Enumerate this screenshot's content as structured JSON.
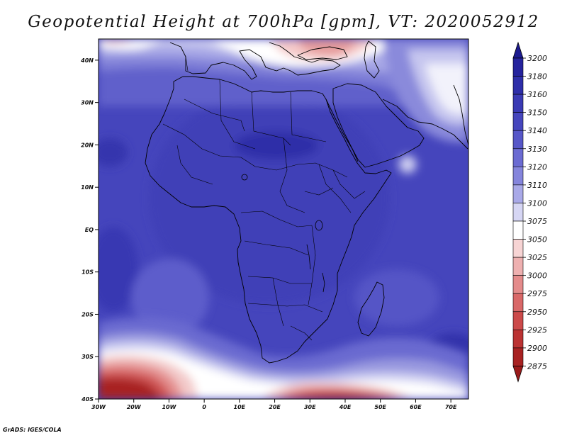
{
  "title": "Geopotential Height at 700hPa [gpm], VT: 2020052912",
  "credit": "GrADS: IGES/COLA",
  "map": {
    "lat_ticks": [
      "40N",
      "30N",
      "20N",
      "10N",
      "EQ",
      "10S",
      "20S",
      "30S",
      "40S"
    ],
    "lon_ticks": [
      "30W",
      "20W",
      "10W",
      "0",
      "10E",
      "20E",
      "30E",
      "40E",
      "50E",
      "60E",
      "70E"
    ],
    "lat_range": [
      -40,
      45
    ],
    "lon_range": [
      -30,
      75
    ]
  },
  "colorbar": {
    "levels": [
      "3200",
      "3180",
      "3160",
      "3150",
      "3140",
      "3130",
      "3120",
      "3110",
      "3100",
      "3075",
      "3050",
      "3025",
      "3000",
      "2975",
      "2950",
      "2925",
      "2900",
      "2875"
    ],
    "colors": [
      "#1c1a8f",
      "#25239d",
      "#2e2ea9",
      "#3a3ab4",
      "#4646bd",
      "#5757c8",
      "#6b6bd2",
      "#8585dc",
      "#a9a9e8",
      "#d6d6f4",
      "#ffffff",
      "#f7d4d4",
      "#eeb0b0",
      "#e48b8b",
      "#d96868",
      "#cc4a4a",
      "#bb3333",
      "#a82222",
      "#9a1a1a"
    ]
  },
  "colors": {
    "ocean_base": "#4646bd",
    "land_base": "#3e3eb6",
    "low_height": "#a11f1f",
    "coast": "#000000"
  }
}
